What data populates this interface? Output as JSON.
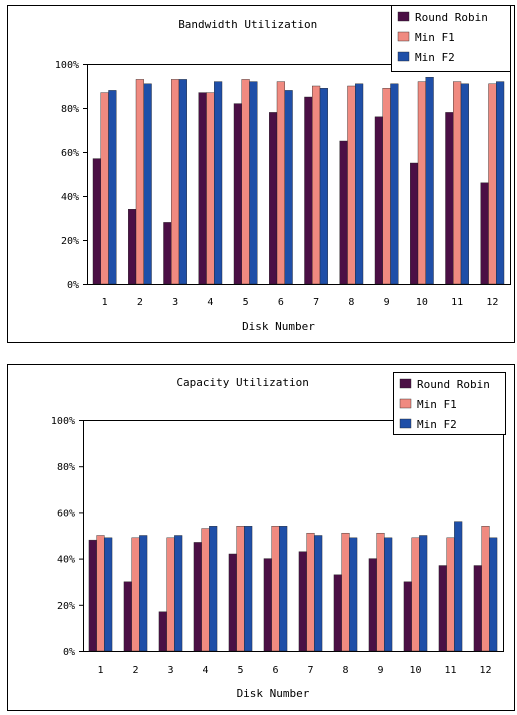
{
  "colors": {
    "round_robin": "#4b0f45",
    "min_f1": "#f08a80",
    "min_f2": "#1f4fa8"
  },
  "chart_data": [
    {
      "type": "bar",
      "title": "Bandwidth Utilization",
      "xlabel": "Disk Number",
      "ylabel": "",
      "ylim": [
        0,
        100
      ],
      "yticks": [
        "0%",
        "20%",
        "40%",
        "60%",
        "80%",
        "100%"
      ],
      "categories": [
        "1",
        "2",
        "3",
        "4",
        "5",
        "6",
        "7",
        "8",
        "9",
        "10",
        "11",
        "12"
      ],
      "series": [
        {
          "name": "Round Robin",
          "values": [
            57,
            34,
            28,
            87,
            82,
            78,
            85,
            65,
            76,
            55,
            78,
            46
          ]
        },
        {
          "name": "Min F1",
          "values": [
            87,
            93,
            93,
            87,
            93,
            92,
            90,
            90,
            89,
            92,
            92,
            91
          ]
        },
        {
          "name": "Min F2",
          "values": [
            88,
            91,
            93,
            92,
            92,
            88,
            89,
            91,
            91,
            94,
            91,
            92
          ]
        }
      ],
      "grid": false,
      "legend": "top-right"
    },
    {
      "type": "bar",
      "title": "Capacity Utilization",
      "xlabel": "Disk Number",
      "ylabel": "",
      "ylim": [
        0,
        100
      ],
      "yticks": [
        "0%",
        "20%",
        "40%",
        "60%",
        "80%",
        "100%"
      ],
      "categories": [
        "1",
        "2",
        "3",
        "4",
        "5",
        "6",
        "7",
        "8",
        "9",
        "10",
        "11",
        "12"
      ],
      "series": [
        {
          "name": "Round Robin",
          "values": [
            48,
            30,
            17,
            47,
            42,
            40,
            43,
            33,
            40,
            30,
            37,
            37
          ]
        },
        {
          "name": "Min F1",
          "values": [
            50,
            49,
            49,
            53,
            54,
            54,
            51,
            51,
            51,
            49,
            49,
            54
          ]
        },
        {
          "name": "Min F2",
          "values": [
            49,
            50,
            50,
            54,
            54,
            54,
            50,
            49,
            49,
            50,
            56,
            49
          ]
        }
      ],
      "grid": false,
      "legend": "top-right"
    }
  ]
}
